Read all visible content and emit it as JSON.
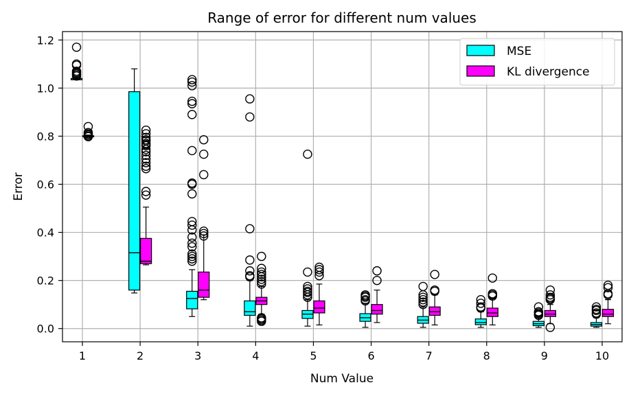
{
  "chart_data": {
    "type": "boxplot",
    "title": "Range of error for different num values",
    "xlabel": "Num Value",
    "ylabel": "Error",
    "categories": [
      "1",
      "2",
      "3",
      "4",
      "5",
      "6",
      "7",
      "8",
      "9",
      "10"
    ],
    "ylim": [
      -0.055,
      1.235
    ],
    "yticks": [
      "0.0",
      "0.2",
      "0.4",
      "0.6",
      "0.8",
      "1.0",
      "1.2"
    ],
    "grid": true,
    "legend_position": "top-right",
    "series": [
      {
        "name": "MSE",
        "color": "#00ffff",
        "boxes": [
          {
            "whislo": 1.035,
            "q1": 1.035,
            "med": 1.035,
            "q3": 1.04,
            "whishi": 1.045,
            "fliers": [
              1.17,
              1.1,
              1.095,
              1.07,
              1.065,
              1.06,
              1.055,
              1.05
            ]
          },
          {
            "whislo": 0.148,
            "q1": 0.16,
            "med": 0.315,
            "q3": 0.985,
            "whishi": 1.08,
            "fliers": []
          },
          {
            "whislo": 0.05,
            "q1": 0.082,
            "med": 0.125,
            "q3": 0.155,
            "whishi": 0.245,
            "fliers": [
              1.035,
              1.025,
              1.01,
              0.945,
              0.935,
              0.89,
              0.74,
              0.605,
              0.6,
              0.56,
              0.445,
              0.43,
              0.41,
              0.38,
              0.355,
              0.34,
              0.31,
              0.3,
              0.29,
              0.28
            ]
          },
          {
            "whislo": 0.01,
            "q1": 0.055,
            "med": 0.07,
            "q3": 0.115,
            "whishi": 0.2,
            "fliers": [
              0.955,
              0.88,
              0.415,
              0.285,
              0.24,
              0.22,
              0.215
            ]
          },
          {
            "whislo": 0.01,
            "q1": 0.042,
            "med": 0.06,
            "q3": 0.075,
            "whishi": 0.12,
            "fliers": [
              0.725,
              0.235,
              0.175,
              0.165,
              0.155,
              0.15,
              0.14,
              0.13
            ]
          },
          {
            "whislo": 0.005,
            "q1": 0.03,
            "med": 0.045,
            "q3": 0.062,
            "whishi": 0.105,
            "fliers": [
              0.14,
              0.135,
              0.13,
              0.12,
              0.115
            ]
          },
          {
            "whislo": 0.005,
            "q1": 0.022,
            "med": 0.035,
            "q3": 0.05,
            "whishi": 0.09,
            "fliers": [
              0.175,
              0.14,
              0.13,
              0.12,
              0.11,
              0.1
            ]
          },
          {
            "whislo": 0.005,
            "q1": 0.016,
            "med": 0.025,
            "q3": 0.04,
            "whishi": 0.07,
            "fliers": [
              0.12,
              0.105,
              0.09,
              0.085
            ]
          },
          {
            "whislo": 0.005,
            "q1": 0.012,
            "med": 0.02,
            "q3": 0.03,
            "whishi": 0.05,
            "fliers": [
              0.09,
              0.07,
              0.065,
              0.06,
              0.055
            ]
          },
          {
            "whislo": 0.005,
            "q1": 0.01,
            "med": 0.017,
            "q3": 0.025,
            "whishi": 0.045,
            "fliers": [
              0.09,
              0.08,
              0.075,
              0.065,
              0.06
            ]
          }
        ]
      },
      {
        "name": "KL divergence",
        "color": "#ff00ff",
        "boxes": [
          {
            "whislo": 0.797,
            "q1": 0.797,
            "med": 0.8,
            "q3": 0.802,
            "whishi": 0.805,
            "fliers": [
              0.84,
              0.815,
              0.81,
              0.805,
              0.8,
              0.798
            ]
          },
          {
            "whislo": 0.265,
            "q1": 0.27,
            "med": 0.28,
            "q3": 0.375,
            "whishi": 0.505,
            "fliers": [
              0.825,
              0.81,
              0.795,
              0.785,
              0.78,
              0.77,
              0.765,
              0.76,
              0.745,
              0.735,
              0.72,
              0.705,
              0.69,
              0.675,
              0.665,
              0.57,
              0.555
            ]
          },
          {
            "whislo": 0.12,
            "q1": 0.13,
            "med": 0.16,
            "q3": 0.235,
            "whishi": 0.39,
            "fliers": [
              0.785,
              0.725,
              0.64,
              0.405,
              0.395,
              0.385
            ]
          },
          {
            "whislo": 0.06,
            "q1": 0.1,
            "med": 0.115,
            "q3": 0.13,
            "whishi": 0.175,
            "fliers": [
              0.3,
              0.25,
              0.235,
              0.225,
              0.215,
              0.205,
              0.195,
              0.185,
              0.045,
              0.04,
              0.035,
              0.03
            ]
          },
          {
            "whislo": 0.015,
            "q1": 0.065,
            "med": 0.085,
            "q3": 0.115,
            "whishi": 0.185,
            "fliers": [
              0.255,
              0.245,
              0.235,
              0.22
            ]
          },
          {
            "whislo": 0.025,
            "q1": 0.06,
            "med": 0.075,
            "q3": 0.1,
            "whishi": 0.16,
            "fliers": [
              0.24,
              0.2
            ]
          },
          {
            "whislo": 0.015,
            "q1": 0.055,
            "med": 0.07,
            "q3": 0.09,
            "whishi": 0.14,
            "fliers": [
              0.225,
              0.16,
              0.155
            ]
          },
          {
            "whislo": 0.015,
            "q1": 0.05,
            "med": 0.065,
            "q3": 0.085,
            "whishi": 0.125,
            "fliers": [
              0.21,
              0.145,
              0.14,
              0.135
            ]
          },
          {
            "whislo": 0.02,
            "q1": 0.05,
            "med": 0.06,
            "q3": 0.075,
            "whishi": 0.1,
            "fliers": [
              0.16,
              0.14,
              0.13,
              0.125,
              0.12,
              0.005
            ]
          },
          {
            "whislo": 0.02,
            "q1": 0.05,
            "med": 0.06,
            "q3": 0.08,
            "whishi": 0.12,
            "fliers": [
              0.18,
              0.17,
              0.145,
              0.14
            ]
          }
        ]
      }
    ]
  }
}
